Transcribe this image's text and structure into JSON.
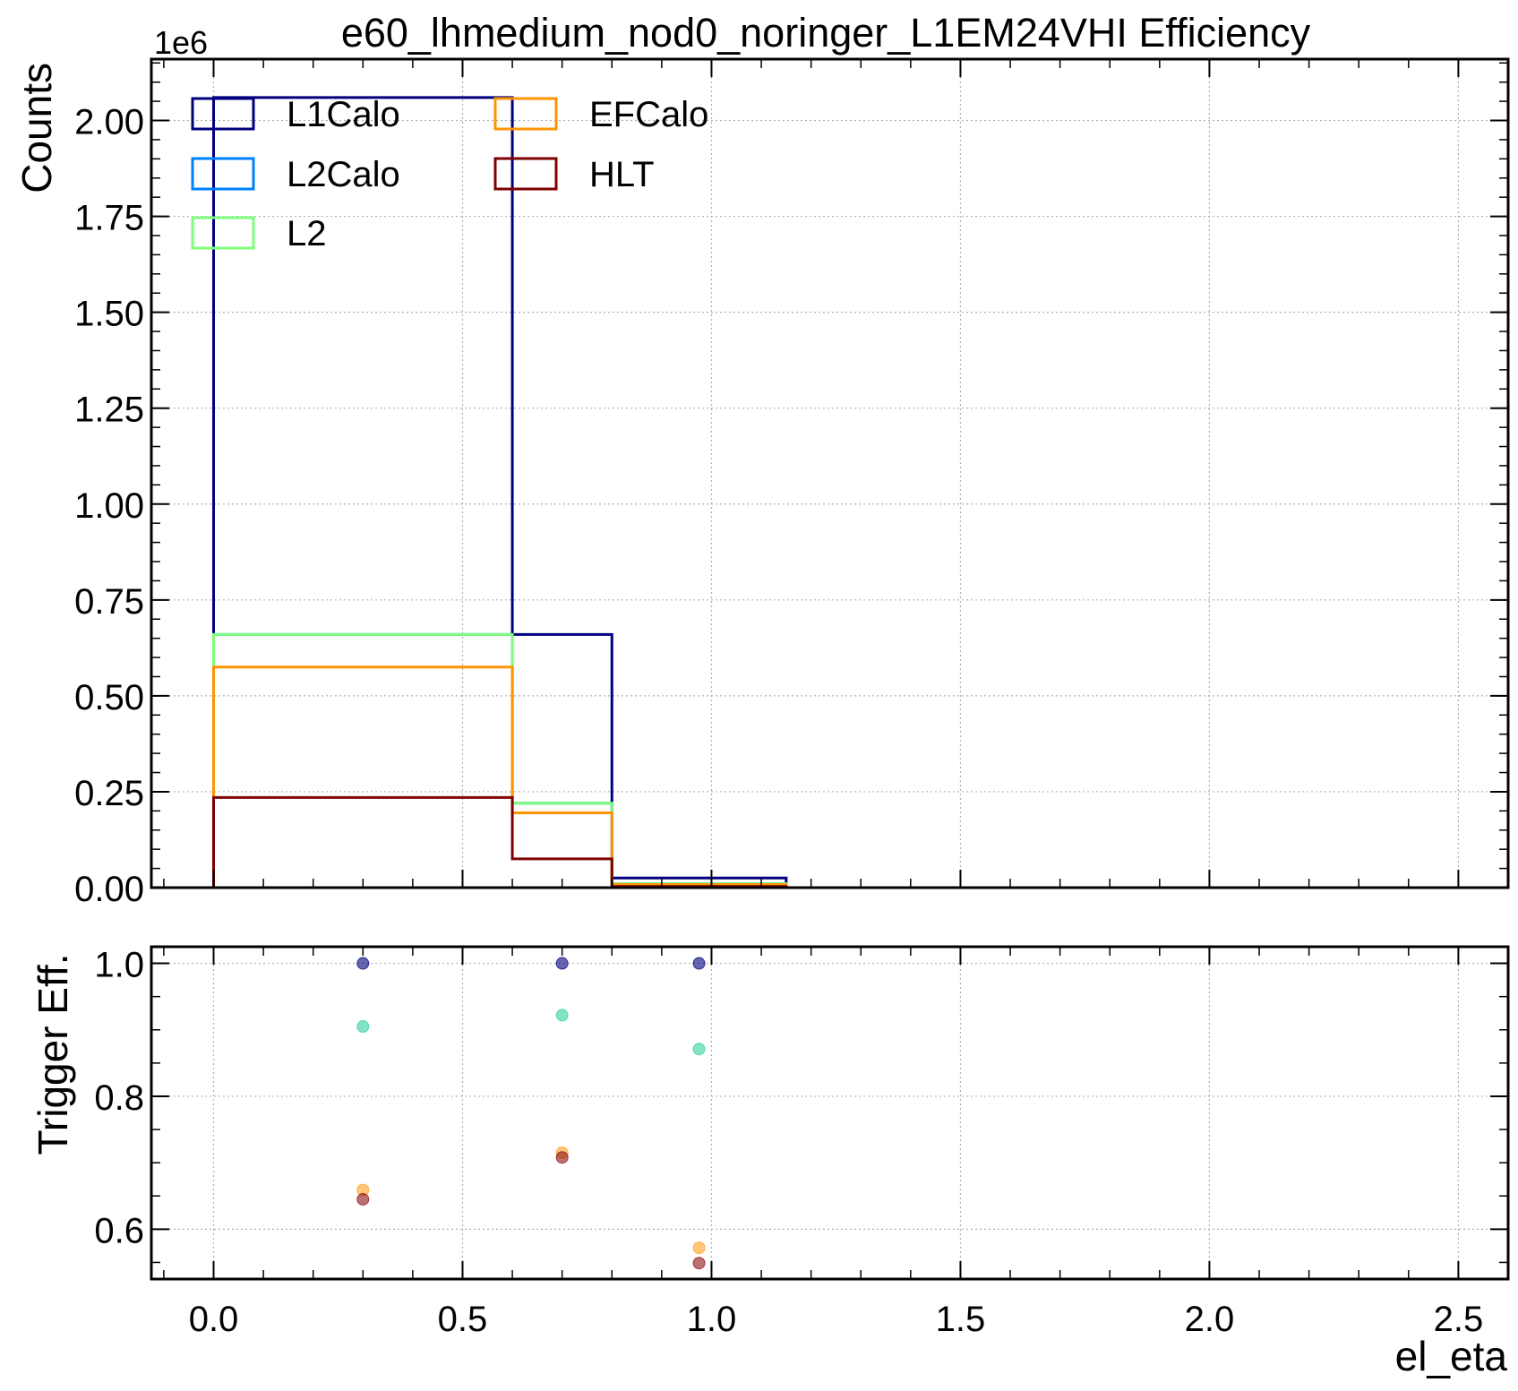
{
  "title": "e60_lhmedium_nod0_noringer_L1EM24VHI Efficiency",
  "colors": {
    "L1Calo": "#00007f",
    "L2Calo": "#0080ff",
    "L2": "#7dff7a",
    "EFCalo": "#ff9400",
    "HLT": "#7f0000",
    "grid": "#b0b0b0",
    "eff_L1Calo": "#00007f",
    "eff_L2Calo": "#2fd0a0",
    "eff_EFCalo": "#ffa020",
    "eff_HLT": "#8f1010"
  },
  "chart_data": [
    {
      "type": "step-histogram",
      "panel": "top",
      "title": "e60_lhmedium_nod0_noringer_L1EM24VHI Efficiency",
      "xlabel": "",
      "ylabel": "Counts",
      "y_offset_label": "1e6",
      "xlim": [
        -0.125,
        2.6
      ],
      "ylim": [
        0,
        2.16
      ],
      "y_scale_factor": 1000000,
      "yticks": [
        0.0,
        0.25,
        0.5,
        0.75,
        1.0,
        1.25,
        1.5,
        1.75,
        2.0
      ],
      "ytick_labels": [
        "0.00",
        "0.25",
        "0.50",
        "0.75",
        "1.00",
        "1.25",
        "1.50",
        "1.75",
        "2.00"
      ],
      "bin_edges": [
        0.0,
        0.6,
        0.8,
        1.15
      ],
      "grid": true,
      "legend_position": "upper left, 2 columns",
      "series": [
        {
          "name": "L1Calo",
          "color_key": "L1Calo",
          "values": [
            2.06,
            0.66,
            0.025
          ]
        },
        {
          "name": "L2Calo",
          "color_key": "L2Calo",
          "values": [
            0.66,
            0.22,
            0.01
          ]
        },
        {
          "name": "L2",
          "color_key": "L2",
          "values": [
            0.66,
            0.22,
            0.01
          ]
        },
        {
          "name": "EFCalo",
          "color_key": "EFCalo",
          "values": [
            0.575,
            0.195,
            0.008
          ]
        },
        {
          "name": "HLT",
          "color_key": "HLT",
          "values": [
            0.235,
            0.075,
            0.003
          ]
        }
      ]
    },
    {
      "type": "scatter",
      "panel": "bottom",
      "xlabel": "el_eta",
      "ylabel": "Trigger Eff.",
      "xlim": [
        -0.125,
        2.6
      ],
      "ylim": [
        0.525,
        1.025
      ],
      "xticks": [
        0.0,
        0.5,
        1.0,
        1.5,
        2.0,
        2.5
      ],
      "xtick_labels": [
        "0.0",
        "0.5",
        "1.0",
        "1.5",
        "2.0",
        "2.5"
      ],
      "yticks": [
        0.6,
        0.8,
        1.0
      ],
      "ytick_labels": [
        "0.6",
        "0.8",
        "1.0"
      ],
      "grid": true,
      "x": [
        0.3,
        0.7,
        0.975
      ],
      "series": [
        {
          "color_key": "eff_L1Calo",
          "values": [
            1.0,
            1.0,
            1.0
          ]
        },
        {
          "color_key": "eff_L2Calo",
          "values": [
            0.905,
            0.922,
            0.871
          ]
        },
        {
          "color_key": "eff_EFCalo",
          "values": [
            0.659,
            0.715,
            0.572
          ]
        },
        {
          "color_key": "eff_HLT",
          "values": [
            0.645,
            0.708,
            0.549
          ]
        }
      ]
    }
  ]
}
